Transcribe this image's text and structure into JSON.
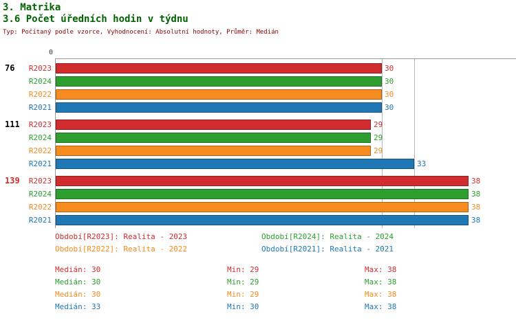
{
  "header": {
    "title_line1": "3. Matrika",
    "title_line2": "3.6 Počet úředních hodin v týdnu",
    "subtitle": "Typ: Počítaný podle vzorce, Vyhodnocení: Absolutní hodnoty, Průměr: Medián",
    "title_color": "#006400",
    "subtitle_color": "#8b0000"
  },
  "chart_data": {
    "type": "bar",
    "orientation": "horizontal",
    "origin_label": "0",
    "xlim": [
      0,
      42.4
    ],
    "grid_values": [
      30,
      33
    ],
    "series_order": [
      "R2023",
      "R2024",
      "R2022",
      "R2021"
    ],
    "series_colors": {
      "R2023": "#d22d2e",
      "R2024": "#2e9e30",
      "R2022": "#f68b1f",
      "R2021": "#1f77b4"
    },
    "groups": [
      {
        "label": "76",
        "label_color": "#000000",
        "values": [
          30,
          30,
          30,
          30
        ]
      },
      {
        "label": "111",
        "label_color": "#000000",
        "values": [
          29,
          29,
          29,
          33
        ]
      },
      {
        "label": "139",
        "label_color": "#d22d2e",
        "values": [
          38,
          38,
          38,
          38
        ]
      }
    ],
    "legend": [
      {
        "series": "R2023",
        "text": "Období[R2023]: Realita - 2023"
      },
      {
        "series": "R2024",
        "text": "Období[R2024]: Realita - 2024"
      },
      {
        "series": "R2022",
        "text": "Období[R2022]: Realita - 2022"
      },
      {
        "series": "R2021",
        "text": "Období[R2021]: Realita - 2021"
      }
    ],
    "stats_labels": {
      "median": "Medián",
      "min": "Min",
      "max": "Max"
    },
    "stats": [
      {
        "series": "R2023",
        "median": 30,
        "min": 29,
        "max": 38
      },
      {
        "series": "R2024",
        "median": 30,
        "min": 29,
        "max": 38
      },
      {
        "series": "R2022",
        "median": 30,
        "min": 29,
        "max": 38
      },
      {
        "series": "R2021",
        "median": 33,
        "min": 30,
        "max": 38
      }
    ]
  }
}
